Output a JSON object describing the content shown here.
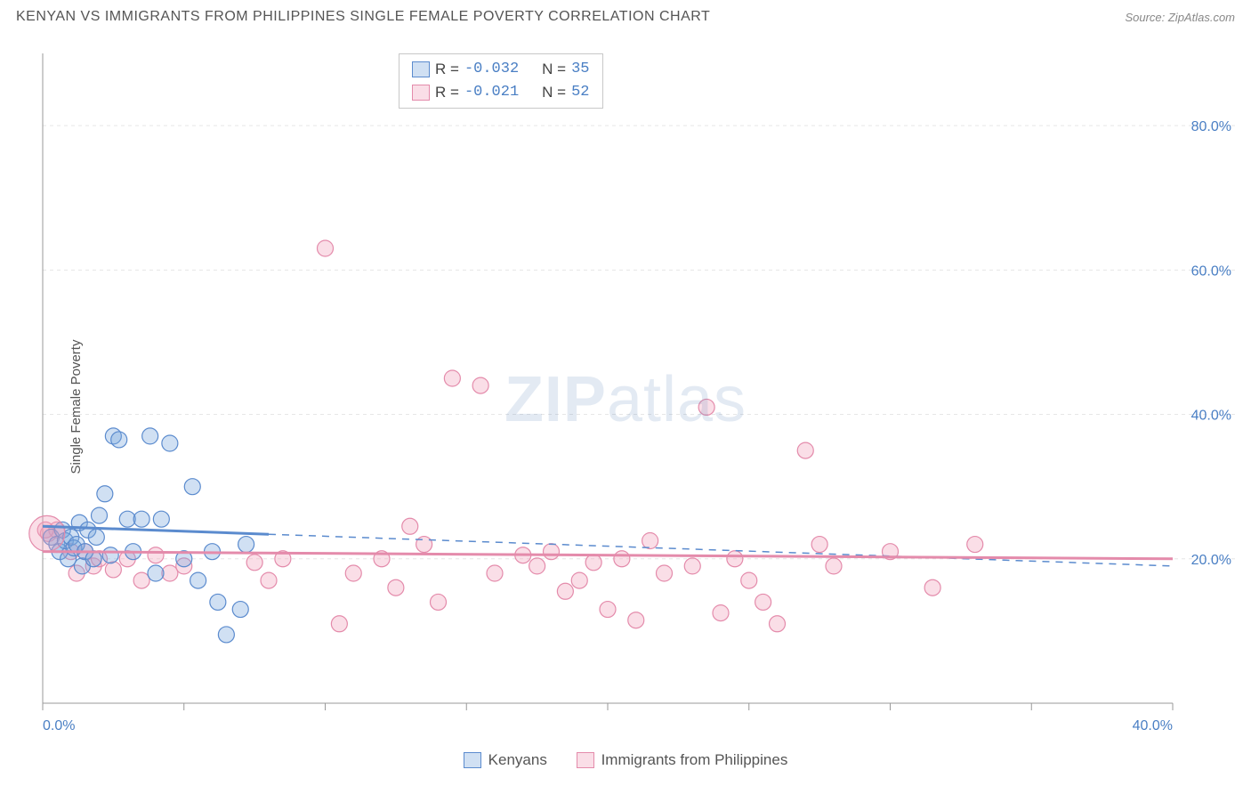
{
  "title": "KENYAN VS IMMIGRANTS FROM PHILIPPINES SINGLE FEMALE POVERTY CORRELATION CHART",
  "source": "Source: ZipAtlas.com",
  "watermark_a": "ZIP",
  "watermark_b": "atlas",
  "chart": {
    "type": "scatter",
    "ylabel": "Single Female Poverty",
    "xlim": [
      0,
      40
    ],
    "ylim": [
      0,
      90
    ],
    "xtick_positions": [
      0,
      5,
      10,
      15,
      20,
      25,
      30,
      35,
      40
    ],
    "xtick_labels": {
      "0": "0.0%",
      "40": "40.0%"
    },
    "ytick_positions": [
      20,
      40,
      60,
      80
    ],
    "ytick_labels": {
      "20": "20.0%",
      "40": "40.0%",
      "60": "60.0%",
      "80": "80.0%"
    },
    "grid_color": "#e6e6e6",
    "axis_color": "#999999",
    "tick_font_color": "#4a7fc4",
    "tick_fontsize": 16,
    "label_fontsize": 15,
    "background_color": "#ffffff",
    "marker_radius": 9,
    "marker_stroke_width": 1.2,
    "series": [
      {
        "name": "Kenyans",
        "color_fill": "rgba(120,165,220,0.35)",
        "color_stroke": "#5b8bce",
        "r": "-0.032",
        "n": "35",
        "trend": {
          "y_start": 24.5,
          "y_end": 19.0,
          "solid_frac": 0.2
        },
        "points": [
          [
            0.3,
            23
          ],
          [
            0.5,
            22
          ],
          [
            0.6,
            21
          ],
          [
            0.7,
            24
          ],
          [
            0.8,
            22.5
          ],
          [
            0.9,
            20
          ],
          [
            1.0,
            23
          ],
          [
            1.1,
            21.5
          ],
          [
            1.2,
            22
          ],
          [
            1.3,
            25
          ],
          [
            1.4,
            19
          ],
          [
            1.5,
            21
          ],
          [
            1.6,
            24
          ],
          [
            1.8,
            20
          ],
          [
            1.9,
            23
          ],
          [
            2.0,
            26
          ],
          [
            2.2,
            29
          ],
          [
            2.4,
            20.5
          ],
          [
            2.5,
            37
          ],
          [
            2.7,
            36.5
          ],
          [
            3.0,
            25.5
          ],
          [
            3.2,
            21
          ],
          [
            3.5,
            25.5
          ],
          [
            3.8,
            37
          ],
          [
            4.0,
            18
          ],
          [
            4.5,
            36
          ],
          [
            5.0,
            20
          ],
          [
            5.3,
            30
          ],
          [
            5.5,
            17
          ],
          [
            6.0,
            21
          ],
          [
            6.2,
            14
          ],
          [
            6.5,
            9.5
          ],
          [
            7.0,
            13
          ],
          [
            7.2,
            22
          ],
          [
            4.2,
            25.5
          ]
        ]
      },
      {
        "name": "Immigrants from Philippines",
        "color_fill": "rgba(240,160,185,0.35)",
        "color_stroke": "#e48bab",
        "r": "-0.021",
        "n": "52",
        "trend": {
          "y_start": 21.0,
          "y_end": 20.0,
          "solid_frac": 1.0
        },
        "points": [
          [
            0.2,
            23.5
          ],
          [
            0.5,
            24
          ],
          [
            1.0,
            21
          ],
          [
            1.2,
            18
          ],
          [
            1.5,
            21
          ],
          [
            1.8,
            19
          ],
          [
            2.0,
            20
          ],
          [
            2.5,
            18.5
          ],
          [
            3.0,
            20
          ],
          [
            3.5,
            17
          ],
          [
            4.0,
            20.5
          ],
          [
            4.5,
            18
          ],
          [
            5.0,
            19
          ],
          [
            7.5,
            19.5
          ],
          [
            8.0,
            17
          ],
          [
            8.5,
            20
          ],
          [
            10.0,
            63
          ],
          [
            10.5,
            11
          ],
          [
            11.0,
            18
          ],
          [
            12.0,
            20
          ],
          [
            12.5,
            16
          ],
          [
            13.0,
            24.5
          ],
          [
            13.5,
            22
          ],
          [
            14.0,
            14
          ],
          [
            14.5,
            45
          ],
          [
            15.5,
            44
          ],
          [
            16.0,
            18
          ],
          [
            17.0,
            20.5
          ],
          [
            17.5,
            19
          ],
          [
            18.0,
            21
          ],
          [
            18.5,
            15.5
          ],
          [
            19.0,
            17
          ],
          [
            19.5,
            19.5
          ],
          [
            20.0,
            13
          ],
          [
            20.5,
            20
          ],
          [
            21.0,
            11.5
          ],
          [
            21.5,
            22.5
          ],
          [
            22.0,
            18
          ],
          [
            23.0,
            19
          ],
          [
            24.0,
            12.5
          ],
          [
            24.5,
            20
          ],
          [
            25.0,
            17
          ],
          [
            25.5,
            14
          ],
          [
            26.0,
            11
          ],
          [
            27.0,
            35
          ],
          [
            27.5,
            22
          ],
          [
            28.0,
            19
          ],
          [
            30.0,
            21
          ],
          [
            31.5,
            16
          ],
          [
            33.0,
            22
          ],
          [
            23.5,
            41
          ],
          [
            0.1,
            24
          ]
        ]
      }
    ]
  },
  "corr_legend": {
    "r_label": "R =",
    "n_label": "N ="
  },
  "bottom_legend": {
    "label_a": "Kenyans",
    "label_b": "Immigrants from Philippines"
  }
}
